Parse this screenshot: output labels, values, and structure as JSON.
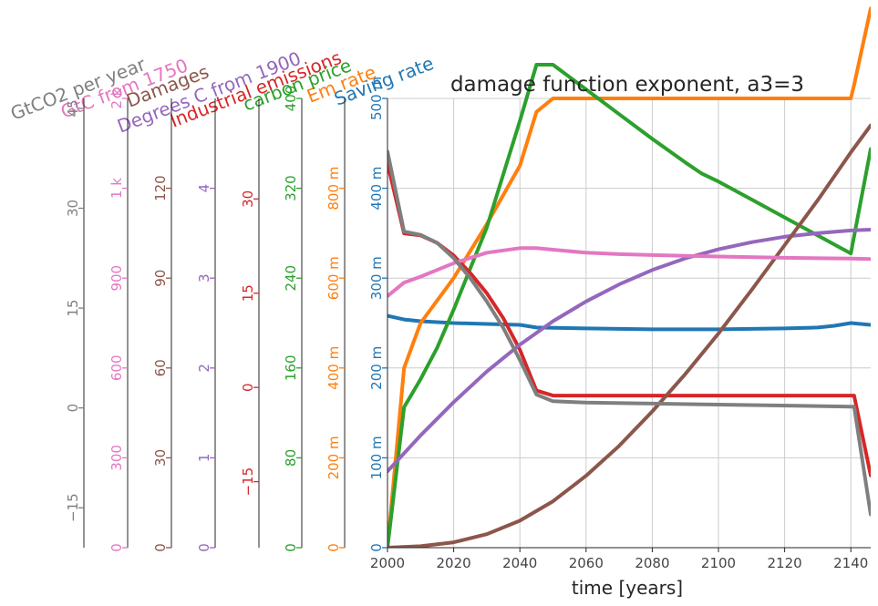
{
  "chart_data": {
    "type": "line",
    "title": "damage function exponent, a3=3",
    "xlabel": "time [years]",
    "xlim": [
      2000,
      2146
    ],
    "xticks": [
      "2000",
      "2020",
      "2040",
      "2060",
      "2080",
      "2100",
      "2120",
      "2140"
    ],
    "xtick_values": [
      2000,
      2020,
      2040,
      2060,
      2080,
      2100,
      2120,
      2140
    ],
    "grid": true,
    "axes": [
      {
        "label": "Saving rate",
        "color": "#1f77b4",
        "ylim": [
          0,
          0.5
        ],
        "ticks": [
          "0",
          "100 m",
          "200 m",
          "300 m",
          "400 m",
          "500 m"
        ],
        "tick_values": [
          0,
          0.1,
          0.2,
          0.3,
          0.4,
          0.5
        ]
      },
      {
        "label": "Em rate",
        "color": "#ff7f0e",
        "ylim": [
          0,
          1.0
        ],
        "ticks": [
          "0",
          "200 m",
          "400 m",
          "600 m",
          "800 m"
        ],
        "tick_values": [
          0,
          0.2,
          0.4,
          0.6,
          0.8
        ]
      },
      {
        "label": "carbon price",
        "color": "#2ca02c",
        "ylim": [
          0,
          400
        ],
        "ticks": [
          "0",
          "80",
          "160",
          "240",
          "320",
          "400"
        ],
        "tick_values": [
          0,
          80,
          160,
          240,
          320,
          400
        ]
      },
      {
        "label": "Industrial emissions",
        "color": "#d62728",
        "ylim": [
          -25.5,
          46
        ],
        "ticks": [
          "−15",
          "0",
          "15",
          "30"
        ],
        "tick_values": [
          -15,
          0,
          15,
          30
        ]
      },
      {
        "label": "Degrees C from 1900",
        "color": "#9467bd",
        "ylim": [
          0,
          5
        ],
        "ticks": [
          "0",
          "1",
          "2",
          "3",
          "4"
        ],
        "tick_values": [
          0,
          1,
          2,
          3,
          4
        ]
      },
      {
        "label": "Damages",
        "color": "#8c564b",
        "ylim": [
          0,
          150
        ],
        "ticks": [
          "0",
          "30",
          "60",
          "90",
          "120"
        ],
        "tick_values": [
          0,
          30,
          60,
          90,
          120
        ]
      },
      {
        "label": "GtC from 1750",
        "color": "#e377c2",
        "ylim": [
          0,
          1500
        ],
        "ticks": [
          "0",
          "300",
          "600",
          "900",
          "1 k",
          "2 k"
        ],
        "tick_values": [
          0,
          300,
          600,
          900,
          1200,
          1500
        ]
      },
      {
        "label": "GtCO2 per year",
        "color": "#7f7f7f",
        "ylim": [
          -21,
          46.5
        ],
        "ticks": [
          "−15",
          "0",
          "15",
          "30",
          "45"
        ],
        "tick_values": [
          -15,
          0,
          15,
          30,
          45
        ]
      }
    ],
    "series": [
      {
        "name": "Saving rate",
        "axis": 0,
        "color": "#1f77b4",
        "x": [
          2000,
          2005,
          2010,
          2020,
          2030,
          2040,
          2045,
          2060,
          2080,
          2100,
          2120,
          2130,
          2135,
          2140,
          2146
        ],
        "y": [
          0.258,
          0.254,
          0.252,
          0.25,
          0.249,
          0.248,
          0.245,
          0.244,
          0.243,
          0.243,
          0.244,
          0.245,
          0.247,
          0.25,
          0.248
        ]
      },
      {
        "name": "Em rate",
        "axis": 1,
        "color": "#ff7f0e",
        "x": [
          2000,
          2005,
          2010,
          2020,
          2030,
          2040,
          2045,
          2050,
          2060,
          2100,
          2140,
          2141,
          2146
        ],
        "y": [
          0,
          0.4,
          0.5,
          0.6,
          0.72,
          0.85,
          0.97,
          1.0,
          1.0,
          1.0,
          1.0,
          1.03,
          1.2
        ]
      },
      {
        "name": "carbon price",
        "axis": 2,
        "color": "#2ca02c",
        "x": [
          2000,
          2005,
          2010,
          2015,
          2020,
          2030,
          2040,
          2045,
          2050,
          2060,
          2070,
          2080,
          2090,
          2095,
          2100,
          2110,
          2120,
          2130,
          2140,
          2146
        ],
        "y": [
          0,
          125,
          150,
          178,
          212,
          285,
          380,
          430,
          430,
          408,
          386,
          364,
          343,
          333,
          326,
          310,
          294,
          278,
          262,
          355
        ]
      },
      {
        "name": "Industrial emissions",
        "axis": 3,
        "color": "#d62728",
        "x": [
          2000,
          2005,
          2010,
          2015,
          2020,
          2025,
          2030,
          2035,
          2040,
          2045,
          2050,
          2060,
          2100,
          2140,
          2141,
          2146
        ],
        "y": [
          35.7,
          24.5,
          24.2,
          23,
          21,
          18.2,
          15,
          11,
          6,
          -0.5,
          -1.3,
          -1.3,
          -1.3,
          -1.3,
          -1.3,
          -14
        ]
      },
      {
        "name": "Degrees C from 1900",
        "axis": 4,
        "color": "#9467bd",
        "x": [
          2000,
          2010,
          2020,
          2030,
          2040,
          2050,
          2060,
          2070,
          2080,
          2090,
          2100,
          2110,
          2120,
          2130,
          2140,
          2146
        ],
        "y": [
          0.85,
          1.25,
          1.62,
          1.96,
          2.26,
          2.52,
          2.74,
          2.93,
          3.09,
          3.22,
          3.32,
          3.4,
          3.46,
          3.5,
          3.53,
          3.54
        ]
      },
      {
        "name": "Damages",
        "axis": 5,
        "color": "#8c564b",
        "x": [
          2000,
          2010,
          2020,
          2030,
          2040,
          2050,
          2060,
          2070,
          2080,
          2090,
          2100,
          2110,
          2120,
          2130,
          2140,
          2146
        ],
        "y": [
          0,
          0.5,
          1.8,
          4.5,
          9,
          15.5,
          24,
          34,
          45.5,
          58,
          71.5,
          86,
          101,
          116,
          132,
          141
        ]
      },
      {
        "name": "GtC from 1750",
        "axis": 6,
        "color": "#e377c2",
        "x": [
          2000,
          2005,
          2010,
          2020,
          2030,
          2040,
          2045,
          2050,
          2060,
          2070,
          2080,
          2100,
          2120,
          2140,
          2146
        ],
        "y": [
          840,
          885,
          905,
          950,
          985,
          1000,
          1000,
          995,
          985,
          980,
          977,
          972,
          968,
          965,
          964
        ]
      },
      {
        "name": "GtCO2 per year",
        "axis": 7,
        "color": "#7f7f7f",
        "x": [
          2000,
          2005,
          2010,
          2015,
          2020,
          2025,
          2030,
          2035,
          2040,
          2045,
          2050,
          2060,
          2100,
          2140,
          2141,
          2146
        ],
        "y": [
          38.5,
          26.5,
          26,
          24.8,
          22.5,
          19.5,
          16,
          12,
          7.2,
          2,
          1,
          0.8,
          0.5,
          0.2,
          0.2,
          -16
        ]
      }
    ]
  }
}
